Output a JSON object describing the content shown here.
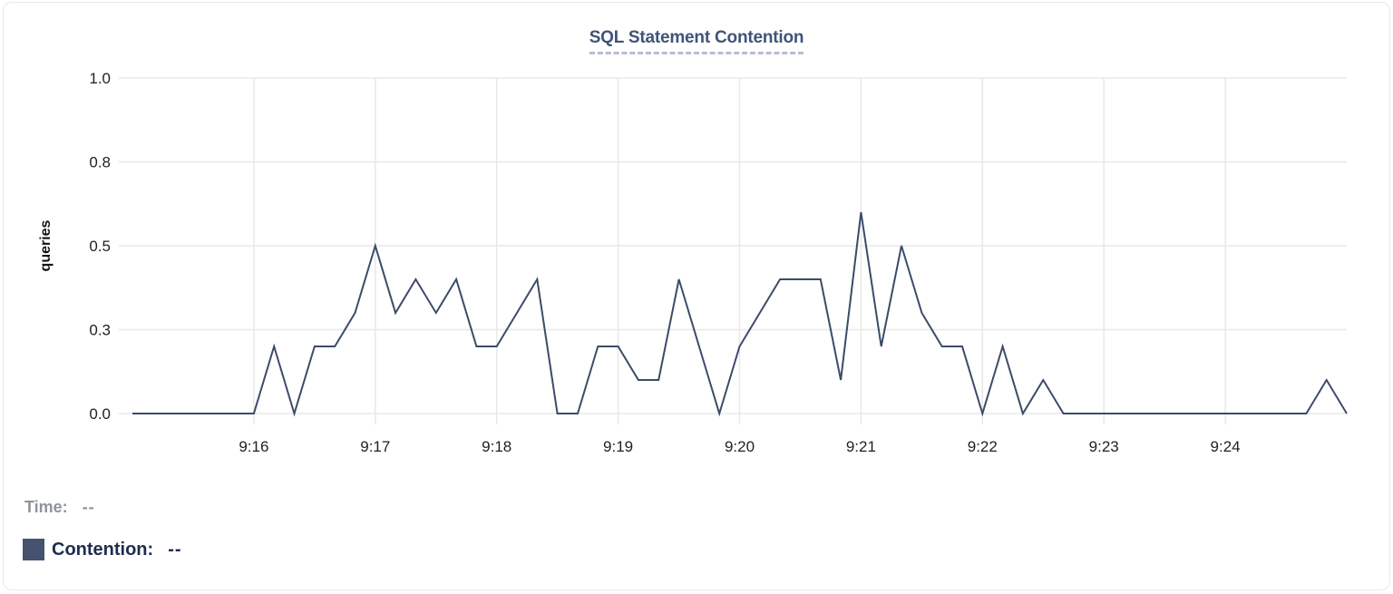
{
  "chart_data": {
    "type": "line",
    "title": "SQL Statement Contention",
    "xlabel": "",
    "ylabel": "queries",
    "ylim": [
      0,
      1
    ],
    "grid": true,
    "legend_position": "bottom-left",
    "y_ticks": [
      {
        "value": 0,
        "label": "0.0"
      },
      {
        "value": 0.25,
        "label": "0.3"
      },
      {
        "value": 0.5,
        "label": "0.5"
      },
      {
        "value": 0.75,
        "label": "0.8"
      },
      {
        "value": 1.0,
        "label": "1.0"
      }
    ],
    "x_ticks": [
      {
        "offset_seconds": 60,
        "label": "9:16"
      },
      {
        "offset_seconds": 120,
        "label": "9:17"
      },
      {
        "offset_seconds": 180,
        "label": "9:18"
      },
      {
        "offset_seconds": 240,
        "label": "9:19"
      },
      {
        "offset_seconds": 300,
        "label": "9:20"
      },
      {
        "offset_seconds": 360,
        "label": "9:21"
      },
      {
        "offset_seconds": 420,
        "label": "9:22"
      },
      {
        "offset_seconds": 480,
        "label": "9:23"
      },
      {
        "offset_seconds": 540,
        "label": "9:24"
      }
    ],
    "x_start": "9:15:00",
    "x_end": "9:25:00",
    "sample_interval_seconds": 10,
    "series": [
      {
        "name": "Contention",
        "unit": "queries",
        "color": "#3c4b68",
        "values": [
          0,
          0,
          0,
          0,
          0,
          0,
          0,
          0.2,
          0,
          0.2,
          0.2,
          0.3,
          0.5,
          0.3,
          0.4,
          0.3,
          0.4,
          0.2,
          0.2,
          0.3,
          0.4,
          0,
          0,
          0.2,
          0.2,
          0.1,
          0.1,
          0.4,
          0.2,
          0,
          0.2,
          0.3,
          0.4,
          0.4,
          0.4,
          0.1,
          0.6,
          0.2,
          0.5,
          0.3,
          0.2,
          0.2,
          0,
          0.2,
          0,
          0.1,
          0,
          0,
          0,
          0,
          0,
          0,
          0,
          0,
          0,
          0,
          0,
          0,
          0,
          0.1,
          0
        ]
      }
    ]
  },
  "legend": {
    "time_label": "Time:",
    "time_value": "--",
    "series_label": "Contention:",
    "series_value": "--",
    "swatch_color": "#46536e"
  },
  "colors": {
    "title": "#3f5478",
    "title_underline": "#b6bed4",
    "grid": "#e8e8e8",
    "tick_label": "#1c2026",
    "time_label_gray": "#8f949c",
    "series_text_navy": "#1e2c4e",
    "line": "#3c4b68",
    "card_border": "#e8e8e8"
  }
}
